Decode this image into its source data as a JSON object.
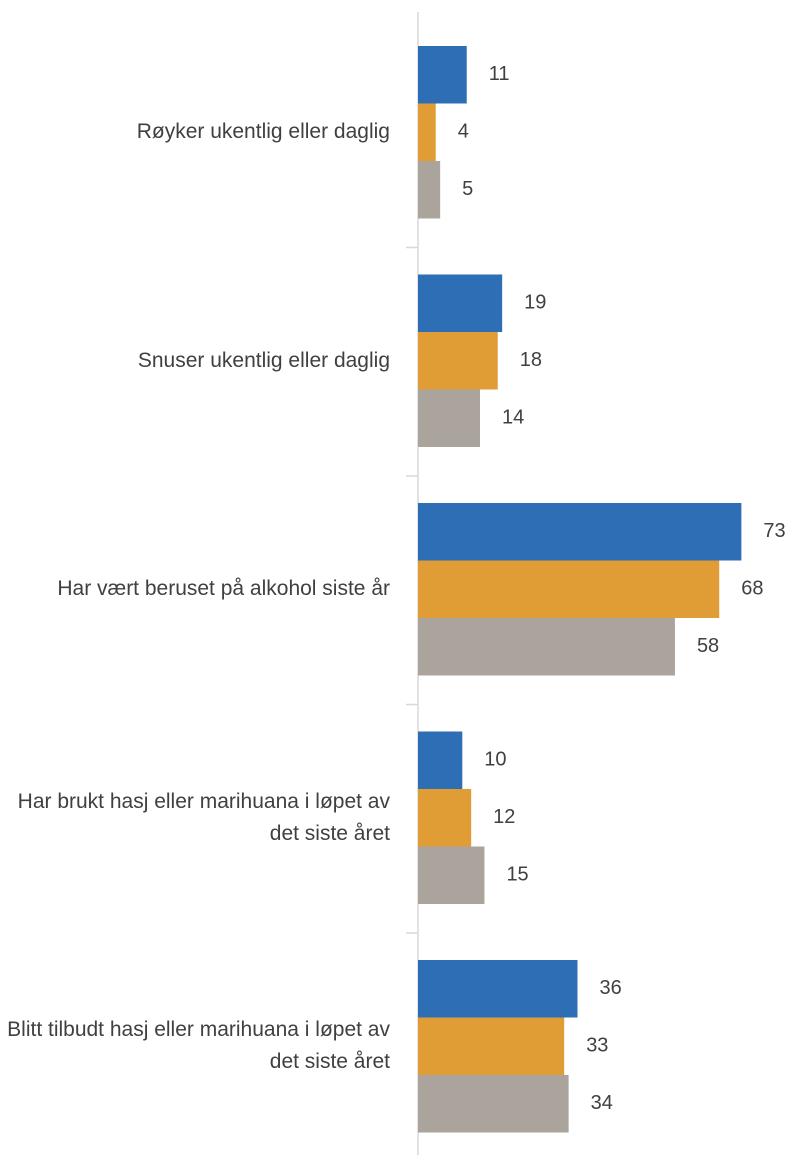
{
  "chart_data": {
    "type": "hbar",
    "categories": [
      "Røyker ukentlig eller daglig",
      "Snuser ukentlig eller daglig",
      "Har vært beruset på alkohol siste år",
      "Har brukt hasj eller marihuana i løpet av det siste året",
      "Blitt tilbudt hasj eller marihuana i løpet av det siste året"
    ],
    "series": [
      {
        "color": "#2e6eb5",
        "values": [
          11,
          19,
          73,
          10,
          36
        ]
      },
      {
        "color": "#e09c35",
        "values": [
          4,
          18,
          68,
          12,
          33
        ]
      },
      {
        "color": "#aba49d",
        "values": [
          5,
          14,
          58,
          15,
          34
        ]
      }
    ]
  }
}
